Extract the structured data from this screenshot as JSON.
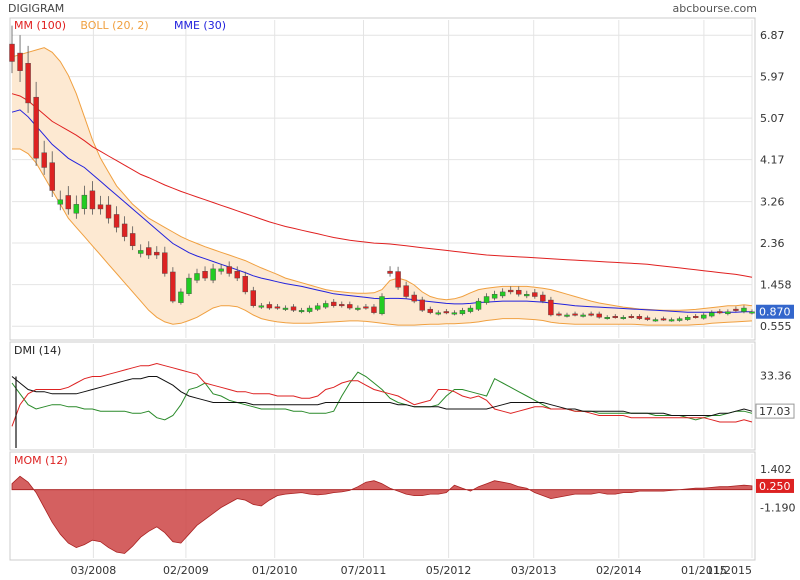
{
  "header": {
    "ticker": "DIGIGRAM",
    "source": "abcbourse.com"
  },
  "colors": {
    "ma100": "#e02020",
    "boll": "#f0a040",
    "boll_fill": "#fde9d2",
    "mme30": "#2222dd",
    "candle_up": "#22cc22",
    "candle_down": "#dd2222",
    "grid": "#e4e4e4",
    "last_price_tag": "#3366cc",
    "mom_fill": "#cc4444",
    "dmi_plus": "#2a8a2a",
    "dmi_minus": "#dd2222",
    "adx": "#111111",
    "dmi_tag": "#111111",
    "mom_tag": "#dd2222"
  },
  "chart_data": [
    {
      "id": "price",
      "type": "candlestick",
      "legend": [
        {
          "label": "MM (100)",
          "color": "#e02020"
        },
        {
          "label": "BOLL (20, 2)",
          "color": "#f0a040"
        },
        {
          "label": "MME (30)",
          "color": "#2222dd"
        }
      ],
      "y_ticks": [
        "6.87",
        "5.97",
        "5.07",
        "4.17",
        "3.26",
        "2.36",
        "1.458",
        "0.555"
      ],
      "y_tick_values": [
        6.87,
        5.97,
        5.07,
        4.17,
        3.26,
        2.36,
        1.458,
        0.555
      ],
      "ylim": [
        0.3,
        7.2
      ],
      "last_value": "0.870",
      "candles_close": [
        6.3,
        6.1,
        5.4,
        4.2,
        4.0,
        3.5,
        3.3,
        3.1,
        3.2,
        3.4,
        3.1,
        3.1,
        2.9,
        2.7,
        2.5,
        2.3,
        2.2,
        2.1,
        2.1,
        1.7,
        1.1,
        1.3,
        1.6,
        1.7,
        1.6,
        1.8,
        1.8,
        1.7,
        1.6,
        1.3,
        1.0,
        1.0,
        0.95,
        0.95,
        0.95,
        0.9,
        0.9,
        0.95,
        1.0,
        1.05,
        1.0,
        1.0,
        0.95,
        0.95,
        0.95,
        0.85,
        1.2,
        1.7,
        1.4,
        1.2,
        1.1,
        0.9,
        0.85,
        0.85,
        0.85,
        0.85,
        0.9,
        0.95,
        1.1,
        1.2,
        1.25,
        1.3,
        1.3,
        1.25,
        1.25,
        1.2,
        1.1,
        0.8,
        0.8,
        0.8,
        0.8,
        0.8,
        0.8,
        0.75,
        0.75,
        0.75,
        0.75,
        0.75,
        0.72,
        0.7,
        0.7,
        0.7,
        0.7,
        0.72,
        0.75,
        0.75,
        0.8,
        0.85,
        0.85,
        0.87,
        0.9,
        0.95,
        0.87
      ],
      "candles_dir": [
        "d",
        "d",
        "d",
        "d",
        "d",
        "d",
        "u",
        "d",
        "u",
        "u",
        "d",
        "d",
        "d",
        "d",
        "d",
        "d",
        "u",
        "d",
        "d",
        "d",
        "d",
        "u",
        "u",
        "u",
        "d",
        "u",
        "u",
        "d",
        "d",
        "d",
        "d",
        "u",
        "d",
        "d",
        "u",
        "d",
        "u",
        "u",
        "u",
        "u",
        "d",
        "d",
        "d",
        "u",
        "d",
        "d",
        "u",
        "d",
        "d",
        "d",
        "d",
        "d",
        "d",
        "u",
        "d",
        "u",
        "u",
        "u",
        "u",
        "u",
        "u",
        "u",
        "d",
        "d",
        "u",
        "d",
        "d",
        "d",
        "d",
        "u",
        "d",
        "u",
        "d",
        "d",
        "u",
        "d",
        "u",
        "d",
        "d",
        "d",
        "u",
        "d",
        "u",
        "u",
        "u",
        "d",
        "u",
        "u",
        "d",
        "u",
        "d",
        "u",
        "u"
      ],
      "ma100": [
        5.6,
        5.55,
        5.45,
        5.3,
        5.15,
        5.0,
        4.9,
        4.8,
        4.7,
        4.58,
        4.45,
        4.35,
        4.25,
        4.15,
        4.05,
        3.95,
        3.85,
        3.78,
        3.7,
        3.62,
        3.55,
        3.48,
        3.42,
        3.36,
        3.3,
        3.24,
        3.18,
        3.12,
        3.06,
        3.0,
        2.94,
        2.88,
        2.82,
        2.77,
        2.72,
        2.68,
        2.64,
        2.6,
        2.56,
        2.52,
        2.48,
        2.45,
        2.42,
        2.4,
        2.38,
        2.36,
        2.35,
        2.34,
        2.32,
        2.3,
        2.28,
        2.26,
        2.24,
        2.22,
        2.2,
        2.18,
        2.16,
        2.14,
        2.12,
        2.1,
        2.09,
        2.08,
        2.07,
        2.06,
        2.05,
        2.04,
        2.03,
        2.02,
        2.01,
        2.0,
        1.99,
        1.98,
        1.97,
        1.96,
        1.95,
        1.94,
        1.93,
        1.92,
        1.91,
        1.9,
        1.88,
        1.86,
        1.84,
        1.82,
        1.8,
        1.78,
        1.76,
        1.74,
        1.72,
        1.7,
        1.68,
        1.65,
        1.62
      ],
      "mme30": [
        5.2,
        5.25,
        5.1,
        4.9,
        4.7,
        4.5,
        4.35,
        4.2,
        4.1,
        4.0,
        3.85,
        3.7,
        3.55,
        3.4,
        3.25,
        3.1,
        2.95,
        2.8,
        2.65,
        2.5,
        2.35,
        2.25,
        2.15,
        2.08,
        2.02,
        1.96,
        1.9,
        1.84,
        1.78,
        1.72,
        1.65,
        1.6,
        1.56,
        1.52,
        1.48,
        1.45,
        1.42,
        1.38,
        1.34,
        1.3,
        1.26,
        1.24,
        1.22,
        1.2,
        1.18,
        1.16,
        1.15,
        1.16,
        1.16,
        1.15,
        1.13,
        1.11,
        1.09,
        1.07,
        1.05,
        1.04,
        1.04,
        1.05,
        1.07,
        1.08,
        1.09,
        1.1,
        1.1,
        1.1,
        1.1,
        1.09,
        1.08,
        1.06,
        1.04,
        1.02,
        1.0,
        0.99,
        0.98,
        0.97,
        0.96,
        0.95,
        0.94,
        0.93,
        0.92,
        0.91,
        0.9,
        0.89,
        0.88,
        0.87,
        0.86,
        0.86,
        0.86,
        0.86,
        0.86,
        0.86,
        0.86,
        0.87,
        0.87
      ],
      "boll_upper": [
        6.4,
        6.45,
        6.5,
        6.55,
        6.6,
        6.5,
        6.3,
        6.0,
        5.6,
        5.1,
        4.6,
        4.2,
        3.9,
        3.6,
        3.4,
        3.2,
        3.05,
        2.9,
        2.8,
        2.7,
        2.6,
        2.5,
        2.42,
        2.35,
        2.28,
        2.22,
        2.16,
        2.1,
        2.04,
        1.98,
        1.9,
        1.82,
        1.75,
        1.68,
        1.6,
        1.55,
        1.5,
        1.45,
        1.4,
        1.35,
        1.32,
        1.3,
        1.28,
        1.27,
        1.27,
        1.28,
        1.35,
        1.55,
        1.6,
        1.55,
        1.45,
        1.3,
        1.2,
        1.15,
        1.13,
        1.15,
        1.2,
        1.28,
        1.35,
        1.38,
        1.4,
        1.42,
        1.42,
        1.42,
        1.42,
        1.4,
        1.38,
        1.35,
        1.3,
        1.25,
        1.2,
        1.15,
        1.1,
        1.06,
        1.03,
        1.0,
        0.97,
        0.95,
        0.93,
        0.92,
        0.91,
        0.9,
        0.9,
        0.9,
        0.91,
        0.92,
        0.94,
        0.96,
        0.98,
        1.0,
        1.0,
        1.02,
        1.0
      ],
      "boll_lower": [
        4.4,
        4.4,
        4.3,
        4.1,
        3.8,
        3.5,
        3.2,
        2.9,
        2.7,
        2.5,
        2.3,
        2.1,
        1.9,
        1.7,
        1.5,
        1.3,
        1.1,
        0.9,
        0.75,
        0.65,
        0.6,
        0.62,
        0.68,
        0.75,
        0.85,
        0.95,
        1.0,
        1.0,
        0.98,
        0.9,
        0.8,
        0.72,
        0.68,
        0.65,
        0.63,
        0.62,
        0.62,
        0.62,
        0.63,
        0.64,
        0.65,
        0.66,
        0.67,
        0.67,
        0.66,
        0.64,
        0.62,
        0.6,
        0.58,
        0.58,
        0.58,
        0.59,
        0.6,
        0.6,
        0.61,
        0.61,
        0.62,
        0.63,
        0.65,
        0.68,
        0.7,
        0.72,
        0.72,
        0.72,
        0.71,
        0.7,
        0.68,
        0.64,
        0.62,
        0.61,
        0.6,
        0.6,
        0.6,
        0.6,
        0.6,
        0.6,
        0.6,
        0.6,
        0.59,
        0.58,
        0.58,
        0.58,
        0.58,
        0.58,
        0.58,
        0.59,
        0.6,
        0.62,
        0.63,
        0.64,
        0.65,
        0.66,
        0.67
      ]
    },
    {
      "id": "dmi",
      "type": "line",
      "legend": [
        {
          "label": "DMI (14)",
          "color": "#222222"
        }
      ],
      "y_ticks": [
        "33.36"
      ],
      "y_tick_values": [
        33.36
      ],
      "ylim": [
        0,
        48
      ],
      "last_value": "17.03",
      "series": [
        {
          "name": "",
          "color": "#2a8a2a",
          "values": [
            30,
            25,
            20,
            18,
            19,
            20,
            20,
            19,
            19,
            18,
            18,
            17,
            17,
            17,
            17,
            16,
            16,
            17,
            14,
            13,
            15,
            20,
            27,
            28,
            30,
            25,
            24,
            22,
            21,
            20,
            19,
            18,
            18,
            18,
            18,
            17,
            17,
            16,
            16,
            16,
            17,
            24,
            30,
            35,
            33,
            30,
            27,
            23,
            21,
            20,
            19,
            19,
            19,
            20,
            24,
            27,
            27,
            26,
            25,
            24,
            32,
            30,
            28,
            26,
            24,
            22,
            20,
            18,
            18,
            18,
            17,
            17,
            17,
            16,
            16,
            16,
            16,
            16,
            16,
            16,
            15,
            15,
            15,
            15,
            14,
            13,
            14,
            15,
            15,
            16,
            17,
            17,
            16
          ]
        },
        {
          "name": "",
          "color": "#dd2222",
          "values": [
            10,
            20,
            25,
            27,
            27,
            27,
            27,
            28,
            30,
            32,
            33,
            33,
            34,
            35,
            36,
            37,
            38,
            38,
            39,
            38,
            37,
            36,
            35,
            34,
            30,
            29,
            28,
            27,
            26,
            26,
            25,
            25,
            25,
            24,
            24,
            24,
            23,
            23,
            24,
            27,
            28,
            30,
            31,
            31,
            29,
            27,
            26,
            25,
            24,
            22,
            20,
            21,
            22,
            27,
            27,
            26,
            24,
            23,
            24,
            22,
            18,
            17,
            16,
            17,
            18,
            19,
            19,
            18,
            18,
            18,
            17,
            17,
            16,
            15,
            15,
            15,
            15,
            14,
            14,
            14,
            14,
            14,
            14,
            14,
            14,
            14,
            14,
            13,
            12,
            12,
            12,
            13,
            12
          ]
        },
        {
          "name": "",
          "color": "#111111",
          "values": [
            33,
            30,
            27,
            26,
            26,
            25,
            25,
            25,
            25,
            26,
            27,
            28,
            29,
            30,
            31,
            32,
            32,
            33,
            33,
            31,
            29,
            26,
            24,
            23,
            22,
            21,
            21,
            21,
            21,
            21,
            20,
            20,
            20,
            20,
            20,
            20,
            20,
            20,
            20,
            21,
            21,
            21,
            21,
            21,
            21,
            21,
            21,
            21,
            20,
            20,
            19,
            19,
            19,
            19,
            18,
            18,
            18,
            18,
            18,
            18,
            19,
            20,
            21,
            21,
            21,
            21,
            21,
            20,
            19,
            18,
            18,
            17,
            17,
            17,
            17,
            17,
            17,
            16,
            16,
            16,
            16,
            16,
            15,
            15,
            15,
            15,
            15,
            15,
            16,
            16,
            17,
            18,
            17
          ]
        }
      ]
    },
    {
      "id": "mom",
      "type": "area",
      "legend": [
        {
          "label": "MOM (12)",
          "color": "#dd2222"
        }
      ],
      "y_ticks": [
        "1.402",
        "-1.190"
      ],
      "y_tick_values": [
        1.402,
        -1.19
      ],
      "ylim": [
        -4.6,
        2.4
      ],
      "last_value": "0.250",
      "values": [
        0.4,
        0.9,
        0.5,
        -0.2,
        -1.2,
        -2.2,
        -3.0,
        -3.6,
        -3.9,
        -3.7,
        -3.4,
        -3.5,
        -3.9,
        -4.2,
        -4.3,
        -3.8,
        -3.2,
        -2.8,
        -2.5,
        -2.9,
        -3.5,
        -3.6,
        -3.0,
        -2.4,
        -2.0,
        -1.6,
        -1.2,
        -0.9,
        -0.6,
        -0.7,
        -1.0,
        -1.1,
        -0.7,
        -0.4,
        -0.3,
        -0.25,
        -0.2,
        -0.3,
        -0.35,
        -0.3,
        -0.2,
        -0.15,
        -0.05,
        0.2,
        0.5,
        0.6,
        0.4,
        0.1,
        -0.1,
        -0.3,
        -0.4,
        -0.4,
        -0.3,
        -0.3,
        -0.2,
        0.3,
        0.1,
        -0.1,
        0.2,
        0.4,
        0.6,
        0.5,
        0.4,
        0.2,
        0.1,
        -0.2,
        -0.4,
        -0.6,
        -0.5,
        -0.4,
        -0.3,
        -0.3,
        -0.3,
        -0.2,
        -0.3,
        -0.3,
        -0.2,
        -0.2,
        -0.1,
        -0.1,
        -0.1,
        -0.1,
        -0.05,
        0.0,
        0.05,
        0.1,
        0.1,
        0.15,
        0.2,
        0.2,
        0.25,
        0.3,
        0.25
      ]
    }
  ],
  "x_axis": {
    "labels": [
      "03/2008",
      "02/2009",
      "01/2010",
      "07/2011",
      "05/2012",
      "03/2013",
      "02/2014",
      "01/2015",
      "11/2015"
    ],
    "label_positions": [
      0.11,
      0.235,
      0.355,
      0.475,
      0.59,
      0.705,
      0.82,
      0.935,
      1.0
    ]
  }
}
